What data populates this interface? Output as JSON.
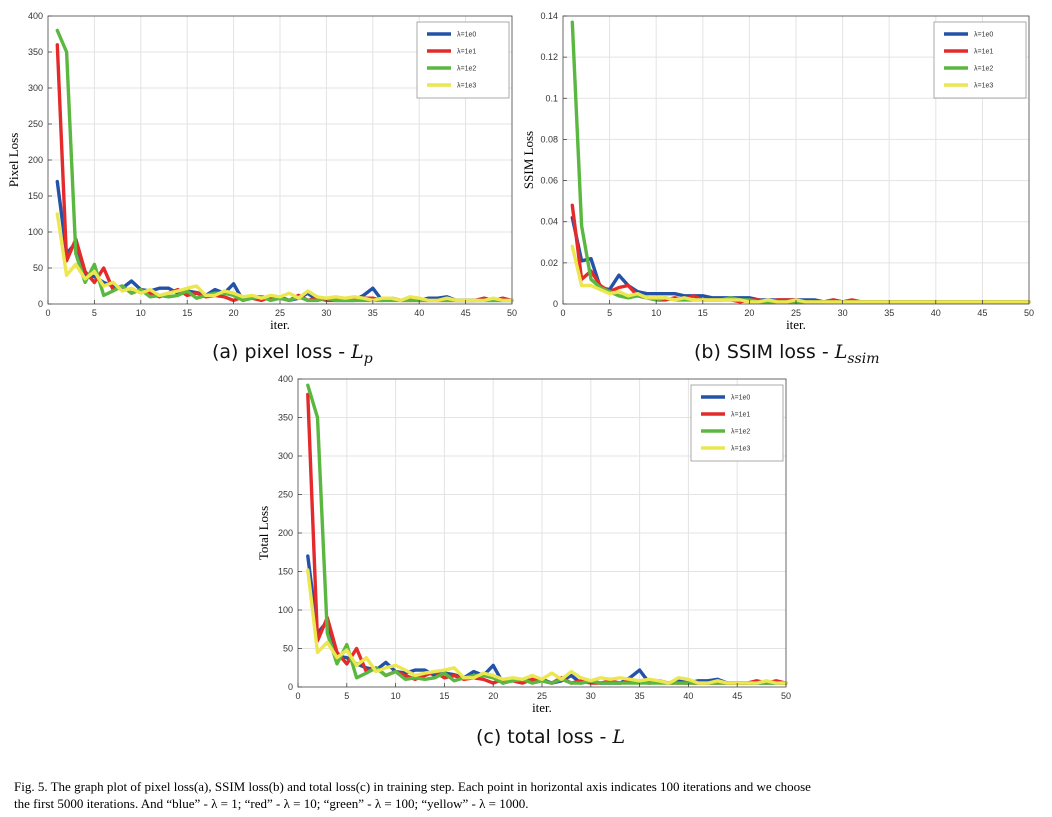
{
  "colors": {
    "blue": "#2352a8",
    "red": "#e42a2a",
    "green": "#5ab840",
    "yellow": "#ece650"
  },
  "chart_data": [
    {
      "type": "line",
      "ylabel": "Pixel Loss",
      "xlabel": "iter.",
      "xlim": [
        0,
        50
      ],
      "ylim": [
        0,
        400
      ],
      "xticks": [
        0,
        5,
        10,
        15,
        20,
        25,
        30,
        35,
        40,
        45,
        50
      ],
      "yticks": [
        0,
        50,
        100,
        150,
        200,
        250,
        300,
        350,
        400
      ],
      "grid": true,
      "legend_position": "top-right",
      "x": [
        1,
        2,
        3,
        4,
        5,
        6,
        7,
        8,
        9,
        10,
        11,
        12,
        13,
        14,
        15,
        16,
        17,
        18,
        19,
        20,
        21,
        22,
        23,
        24,
        25,
        26,
        27,
        28,
        29,
        30,
        31,
        32,
        33,
        34,
        35,
        36,
        37,
        38,
        39,
        40,
        41,
        42,
        43,
        44,
        45,
        46,
        47,
        48,
        49,
        50
      ],
      "series": [
        {
          "name": "λ=1e0",
          "color": "blue",
          "values": [
            170,
            70,
            85,
            40,
            38,
            30,
            25,
            22,
            32,
            20,
            18,
            22,
            22,
            15,
            18,
            16,
            12,
            20,
            15,
            28,
            5,
            10,
            10,
            8,
            10,
            5,
            8,
            15,
            5,
            8,
            5,
            5,
            5,
            12,
            22,
            5,
            8,
            5,
            8,
            5,
            8,
            8,
            10,
            5,
            5,
            5,
            5,
            5,
            5,
            5
          ]
        },
        {
          "name": "λ=1e1",
          "color": "red",
          "values": [
            360,
            60,
            90,
            45,
            30,
            50,
            20,
            25,
            15,
            20,
            15,
            10,
            15,
            20,
            12,
            15,
            10,
            12,
            10,
            5,
            10,
            8,
            5,
            10,
            8,
            5,
            12,
            5,
            8,
            5,
            5,
            8,
            5,
            8,
            8,
            5,
            8,
            5,
            5,
            5,
            5,
            5,
            5,
            5,
            5,
            5,
            8,
            5,
            8,
            5
          ]
        },
        {
          "name": "λ=1e2",
          "color": "green",
          "values": [
            380,
            350,
            70,
            30,
            55,
            12,
            18,
            25,
            15,
            20,
            10,
            12,
            10,
            12,
            18,
            8,
            12,
            15,
            15,
            12,
            5,
            8,
            10,
            5,
            8,
            5,
            10,
            5,
            5,
            8,
            5,
            5,
            5,
            5,
            5,
            5,
            5,
            5,
            5,
            5,
            5,
            5,
            5,
            5,
            5,
            5,
            5,
            5,
            5,
            5
          ]
        },
        {
          "name": "λ=1e3",
          "color": "yellow",
          "values": [
            125,
            40,
            55,
            35,
            45,
            25,
            30,
            18,
            22,
            15,
            20,
            12,
            15,
            18,
            22,
            25,
            12,
            12,
            18,
            15,
            10,
            12,
            8,
            12,
            10,
            15,
            8,
            18,
            10,
            8,
            10,
            8,
            10,
            8,
            5,
            8,
            8,
            5,
            10,
            8,
            5,
            5,
            8,
            5,
            5,
            5,
            5,
            8,
            5,
            5
          ]
        }
      ]
    },
    {
      "type": "line",
      "ylabel": "SSIM Loss",
      "xlabel": "iter.",
      "xlim": [
        0,
        50
      ],
      "ylim": [
        0,
        0.14
      ],
      "xticks": [
        0,
        5,
        10,
        15,
        20,
        25,
        30,
        35,
        40,
        45,
        50
      ],
      "yticks": [
        0,
        0.02,
        0.04,
        0.06,
        0.08,
        0.1,
        0.12,
        0.14
      ],
      "ytick_labels": [
        "0",
        "0.02",
        "0.04",
        "0.06",
        "0.08",
        "0.1",
        "0.12",
        "0.14"
      ],
      "grid": true,
      "legend_position": "top-right",
      "x": [
        1,
        2,
        3,
        4,
        5,
        6,
        7,
        8,
        9,
        10,
        11,
        12,
        13,
        14,
        15,
        16,
        17,
        18,
        19,
        20,
        21,
        22,
        23,
        24,
        25,
        26,
        27,
        28,
        29,
        30,
        31,
        32,
        33,
        34,
        35,
        36,
        37,
        38,
        39,
        40,
        41,
        42,
        43,
        44,
        45,
        46,
        47,
        48,
        49,
        50
      ],
      "series": [
        {
          "name": "λ=1e0",
          "color": "blue",
          "values": [
            0.042,
            0.021,
            0.022,
            0.008,
            0.007,
            0.014,
            0.009,
            0.006,
            0.005,
            0.005,
            0.005,
            0.005,
            0.004,
            0.004,
            0.004,
            0.003,
            0.003,
            0.003,
            0.003,
            0.003,
            0.002,
            0.002,
            0.002,
            0.002,
            0.002,
            0.002,
            0.002,
            0.001,
            0.002,
            0.001,
            0.001,
            0.001,
            0.001,
            0.001,
            0.001,
            0.001,
            0.001,
            0.001,
            0.001,
            0.001,
            0.001,
            0.001,
            0.001,
            0.001,
            0.001,
            0.001,
            0.001,
            0.001,
            0.001,
            0.001
          ]
        },
        {
          "name": "λ=1e1",
          "color": "red",
          "values": [
            0.048,
            0.012,
            0.016,
            0.009,
            0.006,
            0.008,
            0.009,
            0.004,
            0.003,
            0.002,
            0.002,
            0.003,
            0.002,
            0.004,
            0.002,
            0.002,
            0.002,
            0.002,
            0.001,
            0.002,
            0.002,
            0.001,
            0.002,
            0.002,
            0.002,
            0.001,
            0.001,
            0.001,
            0.002,
            0.001,
            0.002,
            0.001,
            0.001,
            0.001,
            0.001,
            0.001,
            0.001,
            0.001,
            0.001,
            0.001,
            0.001,
            0.001,
            0.001,
            0.001,
            0.001,
            0.001,
            0.001,
            0.001,
            0.001,
            0.001
          ]
        },
        {
          "name": "λ=1e2",
          "color": "green",
          "values": [
            0.137,
            0.038,
            0.012,
            0.008,
            0.006,
            0.004,
            0.003,
            0.004,
            0.003,
            0.002,
            0.003,
            0.002,
            0.002,
            0.002,
            0.002,
            0.002,
            0.002,
            0.003,
            0.002,
            0.002,
            0.001,
            0.001,
            0.001,
            0.001,
            0.001,
            0.001,
            0.001,
            0.001,
            0.001,
            0.001,
            0.001,
            0.001,
            0.001,
            0.001,
            0.001,
            0.001,
            0.001,
            0.001,
            0.001,
            0.001,
            0.001,
            0.001,
            0.001,
            0.001,
            0.001,
            0.001,
            0.001,
            0.001,
            0.001,
            0.001
          ]
        },
        {
          "name": "λ=1e3",
          "color": "yellow",
          "values": [
            0.028,
            0.009,
            0.009,
            0.007,
            0.005,
            0.006,
            0.004,
            0.005,
            0.003,
            0.003,
            0.003,
            0.002,
            0.003,
            0.002,
            0.002,
            0.002,
            0.002,
            0.002,
            0.002,
            0.001,
            0.001,
            0.002,
            0.001,
            0.001,
            0.002,
            0.001,
            0.001,
            0.001,
            0.001,
            0.001,
            0.001,
            0.001,
            0.001,
            0.001,
            0.001,
            0.001,
            0.001,
            0.001,
            0.001,
            0.001,
            0.001,
            0.001,
            0.001,
            0.001,
            0.001,
            0.001,
            0.001,
            0.001,
            0.001,
            0.001
          ]
        }
      ]
    },
    {
      "type": "line",
      "ylabel": "Total Loss",
      "xlabel": "iter.",
      "xlim": [
        0,
        50
      ],
      "ylim": [
        0,
        400
      ],
      "xticks": [
        0,
        5,
        10,
        15,
        20,
        25,
        30,
        35,
        40,
        45,
        50
      ],
      "yticks": [
        0,
        50,
        100,
        150,
        200,
        250,
        300,
        350,
        400
      ],
      "grid": true,
      "legend_position": "top-right",
      "x": [
        1,
        2,
        3,
        4,
        5,
        6,
        7,
        8,
        9,
        10,
        11,
        12,
        13,
        14,
        15,
        16,
        17,
        18,
        19,
        20,
        21,
        22,
        23,
        24,
        25,
        26,
        27,
        28,
        29,
        30,
        31,
        32,
        33,
        34,
        35,
        36,
        37,
        38,
        39,
        40,
        41,
        42,
        43,
        44,
        45,
        46,
        47,
        48,
        49,
        50
      ],
      "series": [
        {
          "name": "λ=1e0",
          "color": "blue",
          "values": [
            170,
            70,
            85,
            40,
            38,
            30,
            25,
            22,
            32,
            20,
            18,
            22,
            22,
            15,
            18,
            16,
            12,
            20,
            15,
            28,
            5,
            10,
            10,
            8,
            10,
            5,
            8,
            15,
            5,
            8,
            5,
            5,
            5,
            12,
            22,
            5,
            8,
            5,
            8,
            5,
            8,
            8,
            10,
            5,
            5,
            5,
            5,
            5,
            5,
            5
          ]
        },
        {
          "name": "λ=1e1",
          "color": "red",
          "values": [
            380,
            60,
            90,
            45,
            30,
            50,
            20,
            25,
            15,
            20,
            15,
            10,
            15,
            20,
            12,
            15,
            10,
            12,
            10,
            5,
            10,
            8,
            5,
            10,
            8,
            5,
            12,
            5,
            8,
            5,
            5,
            8,
            5,
            8,
            8,
            5,
            8,
            5,
            5,
            5,
            5,
            5,
            5,
            5,
            5,
            5,
            8,
            5,
            8,
            5
          ]
        },
        {
          "name": "λ=1e2",
          "color": "green",
          "values": [
            392,
            350,
            70,
            30,
            55,
            12,
            18,
            25,
            15,
            20,
            10,
            12,
            10,
            12,
            18,
            8,
            12,
            15,
            15,
            12,
            5,
            8,
            10,
            5,
            8,
            5,
            10,
            5,
            5,
            8,
            5,
            5,
            5,
            5,
            5,
            5,
            5,
            5,
            5,
            5,
            5,
            5,
            5,
            5,
            5,
            5,
            5,
            5,
            5,
            5
          ]
        },
        {
          "name": "λ=1e3",
          "color": "yellow",
          "values": [
            152,
            45,
            58,
            38,
            48,
            28,
            38,
            20,
            25,
            28,
            22,
            15,
            18,
            20,
            22,
            25,
            12,
            12,
            18,
            15,
            10,
            12,
            10,
            15,
            10,
            18,
            10,
            20,
            12,
            8,
            12,
            10,
            12,
            10,
            8,
            10,
            8,
            5,
            12,
            10,
            5,
            5,
            8,
            5,
            5,
            5,
            5,
            8,
            5,
            5
          ]
        }
      ]
    }
  ],
  "captions": {
    "a_text": "(a) pixel loss - ",
    "a_sym": "L",
    "a_sub": "p",
    "b_text": "(b) SSIM loss - ",
    "b_sym": "L",
    "b_sub": "ssim",
    "c_text": "(c) total loss - ",
    "c_sym": "L",
    "figure_line1": "Fig. 5.  The graph plot of pixel loss(a), SSIM loss(b) and total loss(c) in training step. Each point in horizontal axis indicates 100 iterations and we choose",
    "figure_line2": "the first 5000 iterations. And “blue” - λ = 1; “red” - λ = 10; “green” - λ = 100; “yellow” - λ = 1000."
  }
}
